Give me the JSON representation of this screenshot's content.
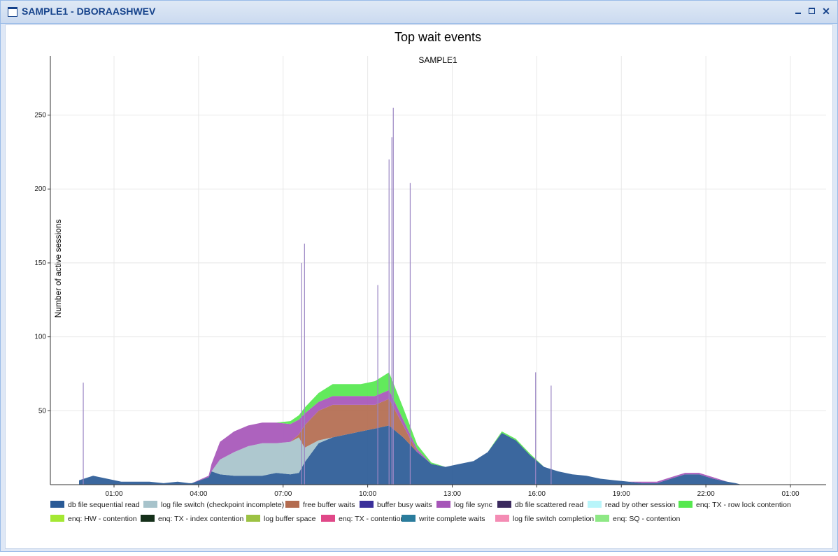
{
  "window": {
    "title": "SAMPLE1 - DBORAASHWEV",
    "close_glyph": "✕"
  },
  "chart_data": {
    "type": "area",
    "title": "Top wait events",
    "subtitle": "SAMPLE1",
    "xlabel": "",
    "ylabel": "Number of active sessions",
    "ylim": [
      0,
      290
    ],
    "yticks": [
      50,
      100,
      150,
      200,
      250
    ],
    "x_tick_labels": [
      "01:00",
      "04:00",
      "07:00",
      "10:00",
      "13:00",
      "16:00",
      "19:00",
      "22:00",
      "01:00"
    ],
    "grid": true,
    "legend_position": "bottom",
    "legend": [
      {
        "name": "db file sequential read",
        "color": "#2a5a96"
      },
      {
        "name": "log file switch (checkpoint incomplete)",
        "color": "#a7c3cb"
      },
      {
        "name": "free buffer waits",
        "color": "#b36b4f"
      },
      {
        "name": "buffer busy waits",
        "color": "#3a2f9a"
      },
      {
        "name": "log file sync",
        "color": "#a655b8"
      },
      {
        "name": "db file scattered read",
        "color": "#3b2a5e"
      },
      {
        "name": "read by other session",
        "color": "#b8f5fa"
      },
      {
        "name": "enq: TX - row lock contention",
        "color": "#55e84e"
      },
      {
        "name": "enq: HW - contention",
        "color": "#a4e833"
      },
      {
        "name": "enq: TX - index contention",
        "color": "#15301a"
      },
      {
        "name": "log buffer space",
        "color": "#9cc243"
      },
      {
        "name": "enq: TX - contention",
        "color": "#e04888"
      },
      {
        "name": "write complete waits",
        "color": "#2a7c9c"
      },
      {
        "name": "log file switch completion",
        "color": "#f48cb4"
      },
      {
        "name": "enq: SQ - contention",
        "color": "#8ee885"
      }
    ],
    "profile_hours": [
      0.0,
      0.5,
      1.0,
      1.5,
      2.0,
      2.5,
      3.0,
      3.5,
      3.9,
      4.0,
      4.6,
      4.7,
      5.0,
      5.5,
      6.0,
      6.5,
      7.0,
      7.5,
      7.8,
      8.0,
      8.5,
      9.0,
      9.5,
      10.0,
      10.5,
      11.0,
      11.5,
      12.0,
      12.5,
      13.0,
      13.5,
      14.0,
      14.5,
      15.0,
      15.5,
      16.0,
      16.5,
      17.0,
      17.5,
      18.0,
      18.5,
      19.0,
      19.5,
      20.0,
      20.5,
      21.0,
      21.5,
      22.0,
      22.5,
      23.0,
      23.3,
      23.5
    ],
    "series": [
      {
        "name": "db file sequential read",
        "values": [
          3,
          6,
          4,
          2,
          2,
          2,
          1,
          2,
          1,
          1,
          5,
          9,
          7,
          6,
          6,
          6,
          8,
          7,
          8,
          15,
          28,
          32,
          34,
          36,
          38,
          40,
          32,
          22,
          14,
          12,
          14,
          16,
          22,
          35,
          30,
          20,
          12,
          9,
          7,
          6,
          4,
          3,
          2,
          1,
          1,
          4,
          7,
          7,
          4,
          2,
          1,
          0
        ]
      },
      {
        "name": "log file switch (checkpoint incomplete)",
        "values": [
          0,
          0,
          0,
          0,
          0,
          0,
          0,
          0,
          0,
          0,
          0,
          0,
          10,
          16,
          20,
          22,
          20,
          22,
          24,
          10,
          2,
          0,
          0,
          0,
          0,
          0,
          0,
          0,
          0,
          0,
          0,
          0,
          0,
          0,
          0,
          0,
          0,
          0,
          0,
          0,
          0,
          0,
          0,
          0,
          0,
          0,
          0,
          0,
          0,
          0,
          0,
          0
        ]
      },
      {
        "name": "free buffer waits",
        "values": [
          0,
          0,
          0,
          0,
          0,
          0,
          0,
          0,
          0,
          0,
          0,
          0,
          0,
          0,
          0,
          0,
          0,
          0,
          2,
          15,
          20,
          22,
          20,
          18,
          16,
          18,
          8,
          0,
          0,
          0,
          0,
          0,
          0,
          0,
          0,
          0,
          0,
          0,
          0,
          0,
          0,
          0,
          0,
          0,
          0,
          0,
          0,
          0,
          0,
          0,
          0,
          0
        ]
      },
      {
        "name": "log file sync",
        "values": [
          0,
          0,
          0,
          0,
          0,
          0,
          0,
          0,
          0,
          0,
          1,
          5,
          12,
          14,
          14,
          14,
          14,
          12,
          10,
          8,
          6,
          6,
          6,
          6,
          6,
          6,
          4,
          2,
          0,
          0,
          0,
          0,
          0,
          0,
          0,
          0,
          0,
          0,
          0,
          0,
          0,
          0,
          0,
          1,
          1,
          1,
          1,
          1,
          1,
          0,
          0,
          0
        ]
      },
      {
        "name": "enq: TX - row lock contention",
        "values": [
          0,
          0,
          0,
          0,
          0,
          0,
          0,
          0,
          0,
          0,
          0,
          0,
          0,
          0,
          0,
          0,
          0,
          2,
          3,
          4,
          6,
          8,
          8,
          8,
          10,
          12,
          8,
          3,
          1,
          0,
          0,
          0,
          0,
          1,
          1,
          1,
          0,
          0,
          0,
          0,
          0,
          0,
          0,
          0,
          0,
          0,
          0,
          0,
          0,
          0,
          0,
          0
        ]
      }
    ],
    "spikes": [
      {
        "hour": 0.15,
        "value": 69
      },
      {
        "hour": 7.9,
        "value": 150
      },
      {
        "hour": 8.0,
        "value": 163
      },
      {
        "hour": 10.6,
        "value": 135
      },
      {
        "hour": 11.0,
        "value": 220
      },
      {
        "hour": 11.1,
        "value": 235
      },
      {
        "hour": 11.15,
        "value": 255
      },
      {
        "hour": 11.75,
        "value": 204
      },
      {
        "hour": 16.2,
        "value": 76
      },
      {
        "hour": 16.75,
        "value": 67
      }
    ]
  }
}
